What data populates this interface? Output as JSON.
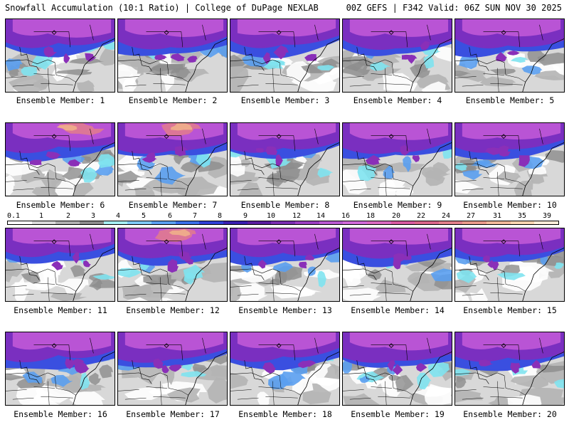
{
  "header": {
    "left": "Snowfall Accumulation (10:1 Ratio) | College of DuPage NEXLAB",
    "right": "00Z GEFS | F342 Valid: 06Z SUN NOV 30 2025"
  },
  "panels": [
    {
      "caption": "Ensemble Member: 1"
    },
    {
      "caption": "Ensemble Member: 2"
    },
    {
      "caption": "Ensemble Member: 3"
    },
    {
      "caption": "Ensemble Member: 4"
    },
    {
      "caption": "Ensemble Member: 5"
    },
    {
      "caption": "Ensemble Member: 6"
    },
    {
      "caption": "Ensemble Member: 7"
    },
    {
      "caption": "Ensemble Member: 8"
    },
    {
      "caption": "Ensemble Member: 9"
    },
    {
      "caption": "Ensemble Member: 10"
    },
    {
      "caption": "Ensemble Member: 11"
    },
    {
      "caption": "Ensemble Member: 12"
    },
    {
      "caption": "Ensemble Member: 13"
    },
    {
      "caption": "Ensemble Member: 14"
    },
    {
      "caption": "Ensemble Member: 15"
    },
    {
      "caption": "Ensemble Member: 16"
    },
    {
      "caption": "Ensemble Member: 17"
    },
    {
      "caption": "Ensemble Member: 18"
    },
    {
      "caption": "Ensemble Member: 19"
    },
    {
      "caption": "Ensemble Member: 20"
    }
  ],
  "legend": {
    "labels": [
      "0.1",
      "1",
      "2",
      "3",
      "4",
      "5",
      "6",
      "7",
      "8",
      "9",
      "10",
      "12",
      "14",
      "16",
      "18",
      "20",
      "22",
      "24",
      "27",
      "31",
      "35",
      "39"
    ],
    "colors": [
      "#ffffff",
      "#d9d9d9",
      "#b0b0b0",
      "#8c8c8c",
      "#a6eef2",
      "#7fc9f5",
      "#5a9ff0",
      "#3a6fe8",
      "#2f3fd6",
      "#3a1fb0",
      "#5a1f9e",
      "#7a2fb0",
      "#9a3fc0",
      "#b85ad0",
      "#cf6ad8",
      "#d86ac0",
      "#d65aa0",
      "#d8668a",
      "#e0808a",
      "#e89a8a",
      "#f0b89a",
      "#f8d4b0",
      "#fcecd8"
    ]
  }
}
